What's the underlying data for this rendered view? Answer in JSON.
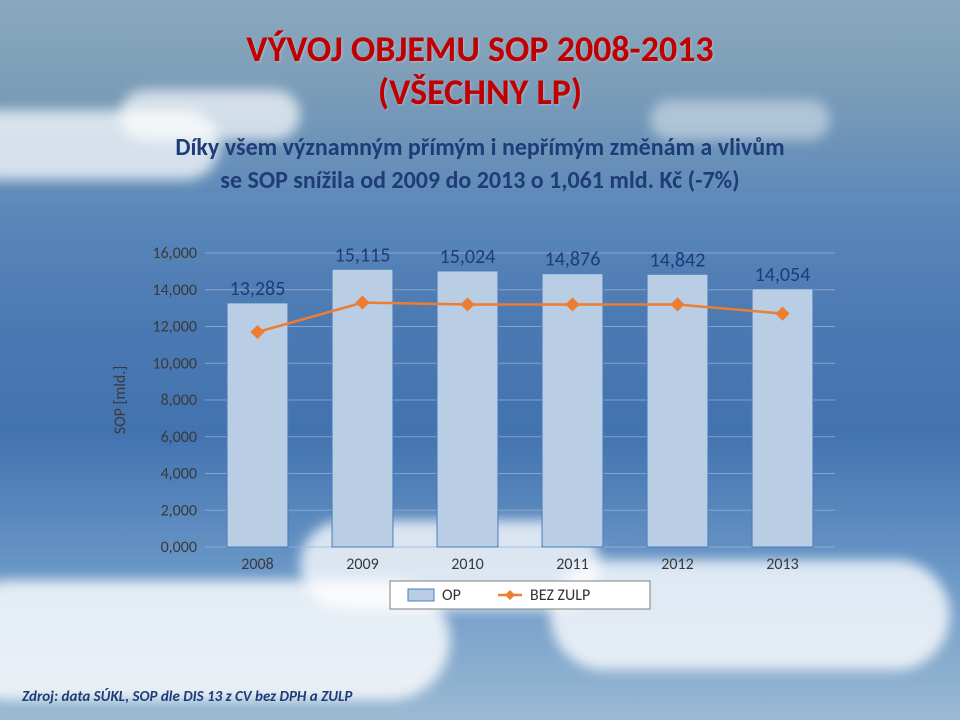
{
  "title_line1": "VÝVOJ OBJEMU SOP 2008-2013",
  "title_line2": "(VŠECHNY LP)",
  "subtitle_line1": "Díky všem významným přímým i nepřímým změnám a vlivům",
  "subtitle_line2": "se SOP snížila od 2009 do 2013 o 1,061 mld. Kč (-7%)",
  "source": "Zdroj: data SÚKL, SOP dle DIS 13 z CV bez DPH a ZULP",
  "chart": {
    "type": "bar+line",
    "categories": [
      "2008",
      "2009",
      "2010",
      "2011",
      "2012",
      "2013"
    ],
    "bar_values": [
      13285,
      15115,
      15024,
      14876,
      14842,
      14054
    ],
    "bar_labels": [
      "13,285",
      "15,115",
      "15,024",
      "14,876",
      "14,842",
      "14,054"
    ],
    "line_values": [
      11700,
      13300,
      13200,
      13200,
      13200,
      12700
    ],
    "ylabel": "SOP [mld.]",
    "yticks": [
      0,
      2000,
      4000,
      6000,
      8000,
      10000,
      12000,
      14000,
      16000
    ],
    "ytick_labels": [
      "0,000",
      "2,000",
      "4,000",
      "6,000",
      "8,000",
      "10,000",
      "12,000",
      "14,000",
      "16,000"
    ],
    "ylim": [
      0,
      16000
    ],
    "legend": [
      "OP",
      "BEZ ZULP"
    ],
    "bar_fill": "#b9cde5",
    "bar_stroke": "#4a7ebb",
    "line_color": "#ed7d31",
    "marker_fill": "#ffffff",
    "marker_stroke": "#ed7d31",
    "grid_color": "#9cb4d6",
    "axis_text_color": "#3a3a3a",
    "label_text_color": "#1e3c78",
    "axis_font_size": 16,
    "label_font_size": 16,
    "datalabel_font_size": 20,
    "bar_width": 0.58,
    "background": "transparent"
  }
}
